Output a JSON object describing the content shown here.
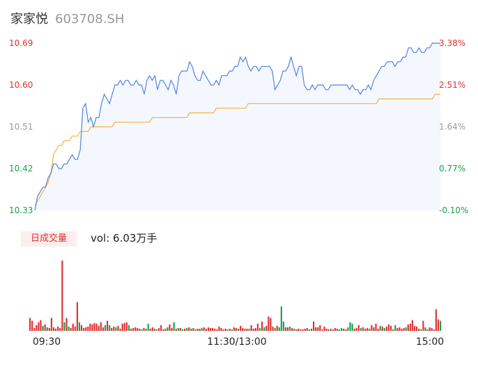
{
  "header": {
    "name": "家家悦",
    "code": "603708.SH"
  },
  "volume_panel": {
    "tab_label": "日成交量",
    "vol_text": "vol: 6.03万手"
  },
  "colors": {
    "price": "#4f83e6",
    "avg": "#f5b335",
    "up": "#e03030",
    "down": "#19a04b",
    "flat": "#999999",
    "area": "#f4f7fd"
  },
  "chart_data": [
    {
      "type": "line",
      "title": "",
      "x_ticks": [
        "09:30",
        "11:30/13:00",
        "15:00"
      ],
      "y_left_ticks": [
        "10.69",
        "10.60",
        "10.51",
        "10.42",
        "10.33"
      ],
      "y_right_ticks": [
        "3.38%",
        "2.51%",
        "1.64%",
        "0.77%",
        "-0.10%"
      ],
      "ylim": [
        10.33,
        10.69
      ],
      "series": [
        {
          "name": "",
          "role": "price",
          "values": [
            10.33,
            10.36,
            10.37,
            10.38,
            10.38,
            10.4,
            10.41,
            10.43,
            10.43,
            10.42,
            10.42,
            10.43,
            10.43,
            10.44,
            10.45,
            10.44,
            10.44,
            10.46,
            10.55,
            10.56,
            10.52,
            10.53,
            10.51,
            10.53,
            10.53,
            10.56,
            10.58,
            10.57,
            10.56,
            10.58,
            10.6,
            10.6,
            10.61,
            10.6,
            10.61,
            10.61,
            10.6,
            10.6,
            10.61,
            10.6,
            10.6,
            10.58,
            10.61,
            10.62,
            10.61,
            10.62,
            10.59,
            10.61,
            10.61,
            10.6,
            10.59,
            10.61,
            10.6,
            10.58,
            10.62,
            10.63,
            10.63,
            10.63,
            10.65,
            10.64,
            10.62,
            10.61,
            10.61,
            10.63,
            10.62,
            10.61,
            10.6,
            10.6,
            10.61,
            10.6,
            10.62,
            10.62,
            10.62,
            10.63,
            10.63,
            10.64,
            10.64,
            10.66,
            10.65,
            10.66,
            10.64,
            10.63,
            10.64,
            10.64,
            10.63,
            10.64,
            10.64,
            10.64,
            10.64,
            10.63,
            10.59,
            10.6,
            10.61,
            10.63,
            10.63,
            10.64,
            10.66,
            10.64,
            10.62,
            10.64,
            10.64,
            10.6,
            10.59,
            10.59,
            10.6,
            10.59,
            10.6,
            10.6,
            10.6,
            10.59,
            10.59,
            10.6,
            10.6,
            10.6,
            10.6,
            10.6,
            10.6,
            10.6,
            10.59,
            10.6,
            10.59,
            10.59,
            10.58,
            10.59,
            10.59,
            10.6,
            10.59,
            10.61,
            10.62,
            10.63,
            10.64,
            10.64,
            10.65,
            10.65,
            10.65,
            10.64,
            10.65,
            10.65,
            10.66,
            10.66,
            10.68,
            10.68,
            10.67,
            10.67,
            10.68,
            10.67,
            10.67,
            10.68,
            10.68,
            10.69,
            10.69,
            10.69,
            10.69
          ]
        },
        {
          "name": "",
          "role": "average",
          "values": [
            10.34,
            10.35,
            10.36,
            10.37,
            10.38,
            10.39,
            10.41,
            10.45,
            10.46,
            10.47,
            10.47,
            10.48,
            10.48,
            10.48,
            10.49,
            10.49,
            10.49,
            10.5,
            10.5,
            10.5,
            10.5,
            10.51,
            10.51,
            10.51,
            10.51,
            10.51,
            10.51,
            10.51,
            10.51,
            10.51,
            10.52,
            10.52,
            10.52,
            10.52,
            10.52,
            10.52,
            10.52,
            10.52,
            10.52,
            10.52,
            10.52,
            10.52,
            10.52,
            10.52,
            10.53,
            10.53,
            10.53,
            10.53,
            10.53,
            10.53,
            10.53,
            10.53,
            10.53,
            10.53,
            10.53,
            10.53,
            10.53,
            10.53,
            10.54,
            10.54,
            10.54,
            10.54,
            10.54,
            10.54,
            10.54,
            10.54,
            10.54,
            10.54,
            10.55,
            10.55,
            10.55,
            10.55,
            10.55,
            10.55,
            10.55,
            10.55,
            10.55,
            10.55,
            10.55,
            10.55,
            10.56,
            10.56,
            10.56,
            10.56,
            10.56,
            10.56,
            10.56,
            10.56,
            10.56,
            10.56,
            10.56,
            10.56,
            10.56,
            10.56,
            10.56,
            10.56,
            10.56,
            10.56,
            10.56,
            10.56,
            10.56,
            10.56,
            10.56,
            10.56,
            10.56,
            10.56,
            10.56,
            10.56,
            10.56,
            10.56,
            10.56,
            10.56,
            10.56,
            10.56,
            10.56,
            10.56,
            10.56,
            10.56,
            10.56,
            10.56,
            10.56,
            10.56,
            10.56,
            10.56,
            10.56,
            10.56,
            10.56,
            10.56,
            10.56,
            10.57,
            10.57,
            10.57,
            10.57,
            10.57,
            10.57,
            10.57,
            10.57,
            10.57,
            10.57,
            10.57,
            10.57,
            10.57,
            10.57,
            10.57,
            10.57,
            10.57,
            10.57,
            10.57,
            10.57,
            10.57,
            10.58,
            10.58,
            10.58
          ]
        }
      ]
    },
    {
      "type": "bar",
      "title": "",
      "ylim": [
        0,
        100
      ],
      "values": [
        18,
        14,
        4,
        8,
        12,
        15,
        7,
        9,
        5,
        4,
        18,
        5,
        3,
        6,
        4,
        98,
        12,
        18,
        6,
        4,
        10,
        6,
        40,
        12,
        8,
        4,
        5,
        6,
        10,
        9,
        11,
        10,
        7,
        12,
        5,
        8,
        14,
        8,
        4,
        6,
        5,
        7,
        3,
        10,
        11,
        12,
        8,
        3,
        4,
        5,
        4,
        3,
        2,
        4,
        3,
        10,
        3,
        5,
        3,
        2,
        4,
        8,
        2,
        3,
        5,
        9,
        4,
        12,
        3,
        4,
        4,
        2,
        3,
        4,
        5,
        3,
        4,
        2,
        3,
        3,
        4,
        5,
        3,
        5,
        4,
        4,
        3,
        2,
        6,
        4,
        2,
        3,
        2,
        3,
        2,
        5,
        4,
        3,
        7,
        4,
        3,
        3,
        3,
        8,
        3,
        4,
        10,
        4,
        13,
        5,
        7,
        20,
        18,
        6,
        4,
        7,
        5,
        34,
        13,
        5,
        5,
        6,
        4,
        3,
        2,
        3,
        2,
        2,
        3,
        4,
        2,
        3,
        13,
        5,
        5,
        8,
        2,
        6,
        3,
        2,
        3,
        2,
        4,
        3,
        2,
        4,
        3,
        2,
        5,
        12,
        10,
        3,
        4,
        8,
        4,
        5,
        3,
        4,
        3,
        8,
        5,
        10,
        3,
        7,
        6,
        4,
        6,
        9,
        7,
        2,
        8,
        4,
        5,
        3,
        4,
        5,
        9,
        10,
        15,
        7,
        6,
        3,
        2,
        14,
        5,
        2,
        5,
        4,
        2,
        30,
        16,
        14
      ],
      "dirs": [
        "u",
        "u",
        "u",
        "u",
        "u",
        "u",
        "d",
        "u",
        "d",
        "u",
        "u",
        "u",
        "u",
        "u",
        "u",
        "u",
        "d",
        "u",
        "d",
        "u",
        "u",
        "u",
        "u",
        "d",
        "u",
        "u",
        "u",
        "u",
        "u",
        "u",
        "u",
        "u",
        "u",
        "u",
        "u",
        "d",
        "u",
        "d",
        "u",
        "u",
        "d",
        "u",
        "u",
        "u",
        "u",
        "u",
        "d",
        "u",
        "u",
        "u",
        "u",
        "d",
        "u",
        "u",
        "d",
        "d",
        "u",
        "u",
        "u",
        "d",
        "u",
        "u",
        "u",
        "u",
        "d",
        "u",
        "u",
        "d",
        "u",
        "d",
        "u",
        "d",
        "u",
        "d",
        "u",
        "d",
        "u",
        "d",
        "u",
        "u",
        "d",
        "u",
        "u",
        "u",
        "u",
        "u",
        "u",
        "u",
        "u",
        "u",
        "u",
        "u",
        "d",
        "u",
        "d",
        "u",
        "u",
        "d",
        "u",
        "u",
        "u",
        "u",
        "d",
        "u",
        "u",
        "u",
        "u",
        "d",
        "u",
        "d",
        "u",
        "u",
        "u",
        "u",
        "d",
        "u",
        "d",
        "d",
        "d",
        "u",
        "u",
        "d",
        "u",
        "d",
        "u",
        "u",
        "u",
        "u",
        "u",
        "u",
        "d",
        "u",
        "u",
        "u",
        "u",
        "u",
        "u",
        "u",
        "u",
        "u",
        "d",
        "u",
        "u",
        "u",
        "d",
        "d",
        "u",
        "u",
        "d",
        "d",
        "d",
        "u",
        "u",
        "u",
        "d",
        "u",
        "u",
        "u",
        "d",
        "u",
        "u",
        "u",
        "u",
        "d",
        "u",
        "d",
        "u",
        "u",
        "u",
        "u",
        "d",
        "u",
        "u",
        "u",
        "u",
        "d",
        "u",
        "u",
        "u",
        "u",
        "u",
        "u",
        "d",
        "u",
        "d",
        "u",
        "u",
        "u",
        "u",
        "u",
        "u",
        "d",
        "d",
        "u",
        "u",
        "u",
        "u",
        "u",
        "u",
        "d",
        "u",
        "u",
        "u",
        "u",
        "f"
      ]
    }
  ]
}
